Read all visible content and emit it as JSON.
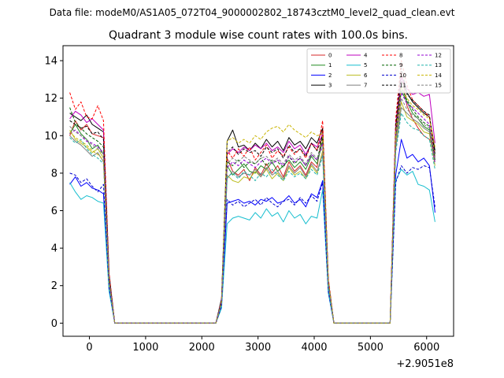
{
  "chart_data": {
    "type": "line",
    "suptitle": "Data file: modeM0/AS1A05_072T04_9000002802_18743cztM0_level2_quad_clean.evt",
    "title": "Quadrant 3 module wise count rates with 100.0s bins.",
    "xlabel": "",
    "ylabel": "",
    "offset_text": "+2.9051e8",
    "xlim": [
      -470,
      6480
    ],
    "ylim": [
      -0.7,
      14.8
    ],
    "xticks": [
      0,
      1000,
      2000,
      3000,
      4000,
      5000,
      6000
    ],
    "xtick_labels": [
      "0",
      "1000",
      "2000",
      "3000",
      "4000",
      "5000",
      "6000"
    ],
    "yticks": [
      0,
      2,
      4,
      6,
      8,
      10,
      12,
      14
    ],
    "ytick_labels": [
      "0",
      "2",
      "4",
      "6",
      "8",
      "10",
      "12",
      "14"
    ],
    "x": [
      -350,
      -250,
      -150,
      -50,
      50,
      150,
      250,
      350,
      450,
      550,
      650,
      750,
      850,
      950,
      1050,
      1150,
      1250,
      1350,
      1450,
      1550,
      1650,
      1750,
      1850,
      1950,
      2050,
      2150,
      2250,
      2350,
      2450,
      2550,
      2650,
      2750,
      2850,
      2950,
      3050,
      3150,
      3250,
      3350,
      3450,
      3550,
      3650,
      3750,
      3850,
      3950,
      4050,
      4150,
      4250,
      4350,
      4450,
      4550,
      4650,
      4750,
      4850,
      4950,
      5050,
      5150,
      5250,
      5350,
      5450,
      5550,
      5650,
      5750,
      5850,
      5950,
      6050,
      6150
    ],
    "series": [
      {
        "name": "0",
        "color": "#d62728",
        "dash": false,
        "values": [
          10.0,
          10.8,
          10.3,
          10.6,
          10.1,
          10.0,
          9.9,
          2.4,
          0,
          0,
          0,
          0,
          0,
          0,
          0,
          0,
          0,
          0,
          0,
          0,
          0,
          0,
          0,
          0,
          0,
          0,
          0,
          1.2,
          8.8,
          8.1,
          7.9,
          8.2,
          7.6,
          8.3,
          7.9,
          8.5,
          8.0,
          8.4,
          7.8,
          8.6,
          8.1,
          8.4,
          7.9,
          8.6,
          8.3,
          10.3,
          2.2,
          0,
          0,
          0,
          0,
          0,
          0,
          0,
          0,
          0,
          0,
          0,
          10.1,
          13.4,
          11.6,
          10.9,
          10.4,
          10.0,
          9.8,
          9.1
        ]
      },
      {
        "name": "1",
        "color": "#228b22",
        "dash": false,
        "values": [
          10.1,
          10.6,
          10.1,
          9.8,
          9.3,
          9.5,
          9.0,
          2.3,
          0,
          0,
          0,
          0,
          0,
          0,
          0,
          0,
          0,
          0,
          0,
          0,
          0,
          0,
          0,
          0,
          0,
          0,
          0,
          1.1,
          8.4,
          7.9,
          8.2,
          8.5,
          8.1,
          8.0,
          8.4,
          8.2,
          8.6,
          8.1,
          8.4,
          8.7,
          8.3,
          8.6,
          8.2,
          8.9,
          8.5,
          9.7,
          2.1,
          0,
          0,
          0,
          0,
          0,
          0,
          0,
          0,
          0,
          0,
          0,
          9.8,
          12.4,
          11.8,
          11.2,
          10.9,
          10.5,
          10.3,
          8.9
        ]
      },
      {
        "name": "2",
        "color": "#0000ff",
        "dash": false,
        "values": [
          7.4,
          7.8,
          7.3,
          7.5,
          7.2,
          7.1,
          6.9,
          1.8,
          0,
          0,
          0,
          0,
          0,
          0,
          0,
          0,
          0,
          0,
          0,
          0,
          0,
          0,
          0,
          0,
          0,
          0,
          0,
          0.9,
          6.4,
          6.5,
          6.6,
          6.4,
          6.5,
          6.3,
          6.6,
          6.5,
          6.7,
          6.4,
          6.5,
          6.8,
          6.4,
          6.6,
          6.2,
          6.9,
          6.7,
          7.6,
          1.7,
          0,
          0,
          0,
          0,
          0,
          0,
          0,
          0,
          0,
          0,
          0,
          7.9,
          9.8,
          8.8,
          9.0,
          8.6,
          8.8,
          8.4,
          5.9
        ]
      },
      {
        "name": "3",
        "color": "#000000",
        "dash": false,
        "values": [
          11.2,
          11.0,
          10.8,
          11.1,
          10.6,
          10.4,
          10.2,
          2.6,
          0,
          0,
          0,
          0,
          0,
          0,
          0,
          0,
          0,
          0,
          0,
          0,
          0,
          0,
          0,
          0,
          0,
          0,
          0,
          1.3,
          9.7,
          10.3,
          9.4,
          9.5,
          9.2,
          9.6,
          9.3,
          9.8,
          9.4,
          9.7,
          9.2,
          9.9,
          9.5,
          9.7,
          9.3,
          9.9,
          9.6,
          10.4,
          2.3,
          0,
          0,
          0,
          0,
          0,
          0,
          0,
          0,
          0,
          0,
          0,
          10.3,
          12.9,
          12.3,
          11.8,
          11.5,
          11.2,
          11.0,
          9.2
        ]
      },
      {
        "name": "4",
        "color": "#bf00bf",
        "dash": false,
        "values": [
          10.9,
          11.3,
          11.1,
          10.7,
          10.9,
          10.6,
          10.3,
          2.5,
          0,
          0,
          0,
          0,
          0,
          0,
          0,
          0,
          0,
          0,
          0,
          0,
          0,
          0,
          0,
          0,
          0,
          0,
          0,
          1.2,
          9.0,
          9.3,
          9.1,
          9.4,
          9.2,
          9.5,
          9.3,
          9.6,
          9.2,
          9.4,
          9.1,
          9.7,
          9.3,
          9.5,
          9.0,
          9.6,
          9.4,
          10.1,
          2.2,
          0,
          0,
          0,
          0,
          0,
          0,
          0,
          0,
          0,
          0,
          0,
          10.6,
          13.1,
          12.5,
          12.2,
          12.3,
          12.1,
          12.2,
          9.6
        ]
      },
      {
        "name": "5",
        "color": "#17becf",
        "dash": false,
        "values": [
          7.5,
          7.0,
          6.6,
          6.8,
          6.7,
          6.5,
          6.4,
          1.7,
          0,
          0,
          0,
          0,
          0,
          0,
          0,
          0,
          0,
          0,
          0,
          0,
          0,
          0,
          0,
          0,
          0,
          0,
          0,
          0.8,
          5.3,
          5.6,
          5.7,
          5.6,
          5.5,
          5.9,
          5.6,
          6.1,
          5.7,
          5.9,
          5.4,
          6.0,
          5.6,
          5.8,
          5.3,
          5.7,
          5.6,
          7.1,
          1.6,
          0,
          0,
          0,
          0,
          0,
          0,
          0,
          0,
          0,
          0,
          0,
          7.6,
          8.2,
          7.9,
          8.1,
          7.4,
          7.3,
          7.1,
          5.4
        ]
      },
      {
        "name": "6",
        "color": "#bcbd22",
        "dash": false,
        "values": [
          10.3,
          9.8,
          9.6,
          9.4,
          9.1,
          9.3,
          8.8,
          2.2,
          0,
          0,
          0,
          0,
          0,
          0,
          0,
          0,
          0,
          0,
          0,
          0,
          0,
          0,
          0,
          0,
          0,
          0,
          0,
          1.0,
          7.9,
          7.6,
          7.5,
          7.8,
          7.7,
          8.1,
          7.8,
          8.2,
          7.7,
          8.0,
          7.6,
          8.3,
          7.9,
          8.1,
          7.7,
          8.4,
          8.0,
          9.2,
          2.0,
          0,
          0,
          0,
          0,
          0,
          0,
          0,
          0,
          0,
          0,
          0,
          9.5,
          11.8,
          11.0,
          10.8,
          10.6,
          10.2,
          10.1,
          8.4
        ]
      },
      {
        "name": "7",
        "color": "#7f7f7f",
        "dash": false,
        "values": [
          10.0,
          9.7,
          9.5,
          9.2,
          8.9,
          9.1,
          8.6,
          2.2,
          0,
          0,
          0,
          0,
          0,
          0,
          0,
          0,
          0,
          0,
          0,
          0,
          0,
          0,
          0,
          0,
          0,
          0,
          0,
          1.0,
          7.7,
          8.1,
          7.8,
          8.0,
          7.9,
          8.2,
          7.8,
          8.3,
          7.9,
          8.1,
          7.7,
          8.4,
          8.0,
          8.3,
          7.8,
          8.5,
          8.1,
          9.0,
          2.0,
          0,
          0,
          0,
          0,
          0,
          0,
          0,
          0,
          0,
          0,
          0,
          9.3,
          11.5,
          11.2,
          10.9,
          10.7,
          10.4,
          10.2,
          8.6
        ]
      },
      {
        "name": "8",
        "color": "#ff0000",
        "dash": true,
        "values": [
          12.3,
          11.4,
          11.8,
          11.0,
          10.9,
          11.6,
          10.8,
          2.7,
          0,
          0,
          0,
          0,
          0,
          0,
          0,
          0,
          0,
          0,
          0,
          0,
          0,
          0,
          0,
          0,
          0,
          0,
          0,
          1.2,
          9.2,
          8.8,
          9.3,
          8.9,
          9.4,
          8.7,
          9.1,
          9.5,
          8.8,
          9.2,
          8.9,
          9.4,
          9.0,
          9.3,
          8.8,
          9.6,
          9.2,
          10.8,
          2.4,
          0,
          0,
          0,
          0,
          0,
          0,
          0,
          0,
          0,
          0,
          0,
          10.9,
          14.0,
          12.7,
          11.9,
          11.6,
          11.3,
          11.0,
          8.8
        ]
      },
      {
        "name": "9",
        "color": "#006400",
        "dash": true,
        "values": [
          11.5,
          10.7,
          10.4,
          10.1,
          9.9,
          9.7,
          9.4,
          2.4,
          0,
          0,
          0,
          0,
          0,
          0,
          0,
          0,
          0,
          0,
          0,
          0,
          0,
          0,
          0,
          0,
          0,
          0,
          0,
          1.1,
          8.6,
          8.4,
          8.7,
          8.3,
          8.6,
          8.5,
          8.8,
          8.4,
          8.7,
          8.6,
          8.3,
          8.9,
          8.5,
          8.8,
          8.4,
          9.0,
          8.7,
          9.9,
          2.2,
          0,
          0,
          0,
          0,
          0,
          0,
          0,
          0,
          0,
          0,
          0,
          9.9,
          12.6,
          11.9,
          11.4,
          11.0,
          10.7,
          10.5,
          8.7
        ]
      },
      {
        "name": "10",
        "color": "#0000cd",
        "dash": true,
        "values": [
          8.0,
          7.9,
          7.5,
          7.7,
          7.3,
          7.0,
          7.4,
          1.9,
          0,
          0,
          0,
          0,
          0,
          0,
          0,
          0,
          0,
          0,
          0,
          0,
          0,
          0,
          0,
          0,
          0,
          0,
          0,
          0.9,
          6.6,
          6.3,
          6.5,
          6.2,
          6.4,
          6.6,
          6.3,
          6.7,
          6.4,
          6.2,
          6.5,
          6.6,
          6.3,
          6.7,
          6.4,
          6.8,
          6.5,
          7.5,
          1.7,
          0,
          0,
          0,
          0,
          0,
          0,
          0,
          0,
          0,
          0,
          0,
          7.5,
          8.4,
          8.0,
          8.3,
          8.2,
          8.4,
          8.3,
          6.2
        ]
      },
      {
        "name": "11",
        "color": "#000000",
        "dash": true,
        "values": [
          10.8,
          10.6,
          10.4,
          10.5,
          10.1,
          10.2,
          9.8,
          2.5,
          0,
          0,
          0,
          0,
          0,
          0,
          0,
          0,
          0,
          0,
          0,
          0,
          0,
          0,
          0,
          0,
          0,
          0,
          0,
          1.2,
          9.1,
          9.4,
          9.0,
          9.3,
          9.1,
          9.2,
          8.9,
          9.4,
          9.1,
          9.3,
          8.8,
          9.5,
          9.1,
          9.3,
          8.9,
          9.6,
          9.2,
          10.0,
          2.2,
          0,
          0,
          0,
          0,
          0,
          0,
          0,
          0,
          0,
          0,
          0,
          10.5,
          13.6,
          12.2,
          11.9,
          11.6,
          11.3,
          11.1,
          9.0
        ]
      },
      {
        "name": "12",
        "color": "#9400d3",
        "dash": true,
        "values": [
          10.1,
          10.3,
          10.0,
          9.7,
          9.6,
          9.4,
          9.1,
          2.3,
          0,
          0,
          0,
          0,
          0,
          0,
          0,
          0,
          0,
          0,
          0,
          0,
          0,
          0,
          0,
          0,
          0,
          0,
          0,
          1.1,
          8.3,
          8.6,
          8.4,
          8.7,
          8.5,
          8.3,
          8.6,
          8.8,
          8.5,
          8.7,
          8.4,
          8.9,
          8.6,
          8.8,
          8.4,
          9.0,
          8.7,
          9.6,
          2.1,
          0,
          0,
          0,
          0,
          0,
          0,
          0,
          0,
          0,
          0,
          0,
          10.0,
          12.3,
          11.7,
          11.5,
          11.2,
          10.9,
          10.6,
          8.5
        ]
      },
      {
        "name": "13",
        "color": "#20b2aa",
        "dash": true,
        "values": [
          9.9,
          9.6,
          9.8,
          9.3,
          9.0,
          8.8,
          8.5,
          2.1,
          0,
          0,
          0,
          0,
          0,
          0,
          0,
          0,
          0,
          0,
          0,
          0,
          0,
          0,
          0,
          0,
          0,
          0,
          0,
          1.0,
          7.8,
          8.0,
          7.7,
          8.1,
          7.9,
          7.6,
          8.0,
          7.8,
          8.2,
          7.9,
          7.6,
          8.1,
          7.8,
          8.0,
          7.7,
          8.2,
          7.9,
          8.9,
          1.9,
          0,
          0,
          0,
          0,
          0,
          0,
          0,
          0,
          0,
          0,
          0,
          9.1,
          11.2,
          10.7,
          10.4,
          10.3,
          10.0,
          9.8,
          8.2
        ]
      },
      {
        "name": "14",
        "color": "#c8b400",
        "dash": true,
        "values": [
          10.2,
          9.9,
          9.7,
          9.5,
          9.2,
          9.0,
          8.7,
          2.2,
          0,
          0,
          0,
          0,
          0,
          0,
          0,
          0,
          0,
          0,
          0,
          0,
          0,
          0,
          0,
          0,
          0,
          0,
          0,
          1.1,
          9.7,
          9.9,
          9.6,
          9.8,
          9.6,
          10.0,
          9.8,
          10.2,
          10.4,
          10.5,
          10.2,
          10.6,
          10.3,
          10.1,
          9.9,
          10.2,
          10.0,
          10.1,
          2.2,
          0,
          0,
          0,
          0,
          0,
          0,
          0,
          0,
          0,
          0,
          0,
          10.2,
          12.6,
          12.0,
          11.6,
          11.4,
          11.1,
          10.9,
          9.4
        ]
      },
      {
        "name": "15",
        "color": "#808080",
        "dash": true,
        "values": [
          10.5,
          10.2,
          10.0,
          9.8,
          9.5,
          9.3,
          9.0,
          2.3,
          0,
          0,
          0,
          0,
          0,
          0,
          0,
          0,
          0,
          0,
          0,
          0,
          0,
          0,
          0,
          0,
          0,
          0,
          0,
          1.1,
          8.5,
          8.8,
          8.6,
          8.9,
          8.7,
          8.5,
          8.8,
          8.9,
          8.6,
          8.8,
          8.5,
          9.0,
          8.7,
          8.9,
          8.5,
          9.1,
          8.8,
          9.4,
          2.1,
          0,
          0,
          0,
          0,
          0,
          0,
          0,
          0,
          0,
          0,
          0,
          9.7,
          12.0,
          11.4,
          11.1,
          10.9,
          10.6,
          10.4,
          8.8
        ]
      }
    ]
  }
}
